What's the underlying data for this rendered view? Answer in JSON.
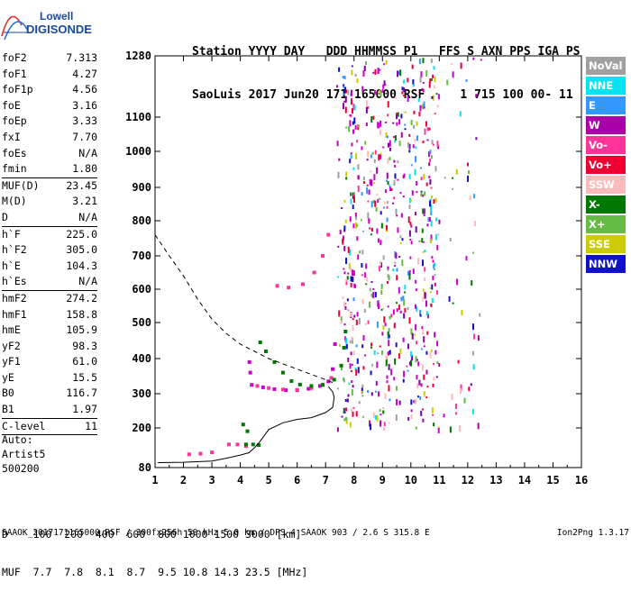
{
  "logo": {
    "line1": "Lowell",
    "line2": "DIGISONDE"
  },
  "header": {
    "row1": "Station YYYY DAY   DDD HHMMSS P1   FFS S AXN PPS IGA PS",
    "row2": "SaoLuis 2017 Jun20 171 165000 RSF     1 715 100 00- 11"
  },
  "params": [
    {
      "name": "foF2",
      "value": "7.313"
    },
    {
      "name": "foF1",
      "value": "4.27"
    },
    {
      "name": "foF1p",
      "value": "4.56"
    },
    {
      "name": "foE",
      "value": "3.16"
    },
    {
      "name": "foEp",
      "value": "3.33"
    },
    {
      "name": "fxI",
      "value": "7.70"
    },
    {
      "name": "foEs",
      "value": "N/A"
    },
    {
      "name": "fmin",
      "value": "1.80"
    },
    {
      "sep": true
    },
    {
      "name": "MUF(D)",
      "value": "23.45"
    },
    {
      "name": "M(D)",
      "value": "3.21"
    },
    {
      "name": "D",
      "value": "N/A"
    },
    {
      "sep": true
    },
    {
      "name": "h`F",
      "value": "225.0"
    },
    {
      "name": "h`F2",
      "value": "305.0"
    },
    {
      "name": "h`E",
      "value": "104.3"
    },
    {
      "name": "h`Es",
      "value": "N/A"
    },
    {
      "sep": true
    },
    {
      "name": "hmF2",
      "value": "274.2"
    },
    {
      "name": "hmF1",
      "value": "158.8"
    },
    {
      "name": "hmE",
      "value": "105.9"
    },
    {
      "name": "yF2",
      "value": "98.3"
    },
    {
      "name": "yF1",
      "value": "61.0"
    },
    {
      "name": "yE",
      "value": "15.5"
    },
    {
      "name": "B0",
      "value": "116.7"
    },
    {
      "name": "B1",
      "value": "1.97"
    },
    {
      "sep": true
    },
    {
      "name": "C-level",
      "value": "11"
    },
    {
      "sep": true
    }
  ],
  "autoscaling": {
    "line1": "Auto:",
    "line2": "Artist5",
    "line3": "500200"
  },
  "legend": [
    {
      "label": "NoVal",
      "color": "#a0a0a0"
    },
    {
      "label": "NNE",
      "color": "#00e5ee"
    },
    {
      "label": "E",
      "color": "#3399ff"
    },
    {
      "label": "W",
      "color": "#aa00aa"
    },
    {
      "label": "Vo-",
      "color": "#ff3399"
    },
    {
      "label": "Vo+",
      "color": "#ee0033"
    },
    {
      "label": "SSW",
      "color": "#ffbbbb"
    },
    {
      "label": "X-",
      "color": "#007700"
    },
    {
      "label": "X+",
      "color": "#66bb44"
    },
    {
      "label": "SSE",
      "color": "#cccc00"
    },
    {
      "label": "NNW",
      "color": "#1111cc"
    }
  ],
  "muf_table": {
    "row1": "D    100  200  400  600  800 1000 1500 3000 [km]",
    "row2": "MUF  7.7  7.8  8.1  8.7  9.5 10.8 14.3 23.5 [MHz]"
  },
  "footer": {
    "left": "SAAOK_2017171165000.RSF / 300fx256h 50 kHz 5.0 km / DPS-4 SAAOK 903 / 2.6 S 315.8 E",
    "right": "Ion2Png 1.3.17"
  },
  "chart_data": {
    "type": "scatter",
    "title": "",
    "xlabel": "",
    "ylabel": "",
    "xlim": [
      1,
      16
    ],
    "ylim": [
      80,
      1280
    ],
    "x_ticks": [
      "1",
      "2",
      "3",
      "4",
      "5",
      "6",
      "7",
      "8",
      "9",
      "10",
      "11",
      "12",
      "13",
      "14",
      "15",
      "16"
    ],
    "y_ticks": [
      "80",
      "200",
      "300",
      "400",
      "500",
      "600",
      "700",
      "800",
      "900",
      "1000",
      "1100",
      "1280"
    ],
    "y_scale": "reciprocal (ionogram height scale)",
    "grid": false,
    "legend_position": "right",
    "series": [
      {
        "legend": "W",
        "color": "#cc00cc",
        "points": [
          [
            4.4,
            325
          ],
          [
            4.8,
            318
          ],
          [
            5.2,
            313
          ],
          [
            5.6,
            310
          ],
          [
            6.0,
            310
          ],
          [
            6.4,
            314
          ],
          [
            6.8,
            322
          ],
          [
            7.1,
            335
          ],
          [
            7.25,
            370
          ],
          [
            7.33,
            440
          ],
          [
            4.35,
            360
          ],
          [
            4.32,
            390
          ]
        ]
      },
      {
        "legend": "Vo-",
        "color": "#ff3399",
        "points": [
          [
            4.6,
            322
          ],
          [
            5.0,
            316
          ],
          [
            5.5,
            312
          ],
          [
            6.0,
            311
          ],
          [
            6.5,
            316
          ],
          [
            6.9,
            326
          ],
          [
            7.2,
            345
          ],
          [
            3.6,
            150
          ],
          [
            3.9,
            150
          ],
          [
            4.2,
            145
          ],
          [
            2.2,
            120
          ],
          [
            2.6,
            122
          ],
          [
            3.0,
            126
          ],
          [
            5.3,
            610
          ],
          [
            5.7,
            605
          ],
          [
            6.2,
            615
          ],
          [
            6.6,
            650
          ],
          [
            6.9,
            700
          ],
          [
            7.1,
            760
          ]
        ]
      },
      {
        "legend": "X-",
        "color": "#007700",
        "points": [
          [
            4.7,
            445
          ],
          [
            4.9,
            420
          ],
          [
            5.2,
            390
          ],
          [
            5.5,
            360
          ],
          [
            5.8,
            336
          ],
          [
            6.1,
            326
          ],
          [
            6.5,
            322
          ],
          [
            6.9,
            325
          ],
          [
            7.3,
            340
          ],
          [
            7.55,
            380
          ],
          [
            7.65,
            430
          ],
          [
            7.7,
            475
          ],
          [
            4.2,
            150
          ],
          [
            4.45,
            150
          ],
          [
            4.65,
            148
          ],
          [
            4.1,
            210
          ],
          [
            4.25,
            190
          ]
        ]
      }
    ],
    "virtual_height_curve": {
      "style": "solid",
      "x": [
        1.1,
        2.0,
        3.0,
        3.6,
        4.0,
        4.3,
        4.5,
        4.7,
        5.0,
        5.5,
        6.0,
        6.5,
        7.0,
        7.25,
        7.3,
        7.25,
        7.1
      ],
      "y": [
        95,
        96,
        100,
        110,
        118,
        125,
        140,
        160,
        195,
        215,
        225,
        230,
        245,
        260,
        290,
        305,
        320
      ]
    },
    "muf_curve": {
      "style": "dashed",
      "x": [
        1.0,
        1.5,
        2.0,
        2.5,
        3.0,
        3.5,
        4.0,
        4.5,
        5.0,
        5.5,
        6.0,
        6.5,
        7.0,
        7.3
      ],
      "y": [
        760,
        700,
        640,
        570,
        510,
        470,
        440,
        420,
        400,
        385,
        370,
        355,
        340,
        330
      ]
    }
  }
}
